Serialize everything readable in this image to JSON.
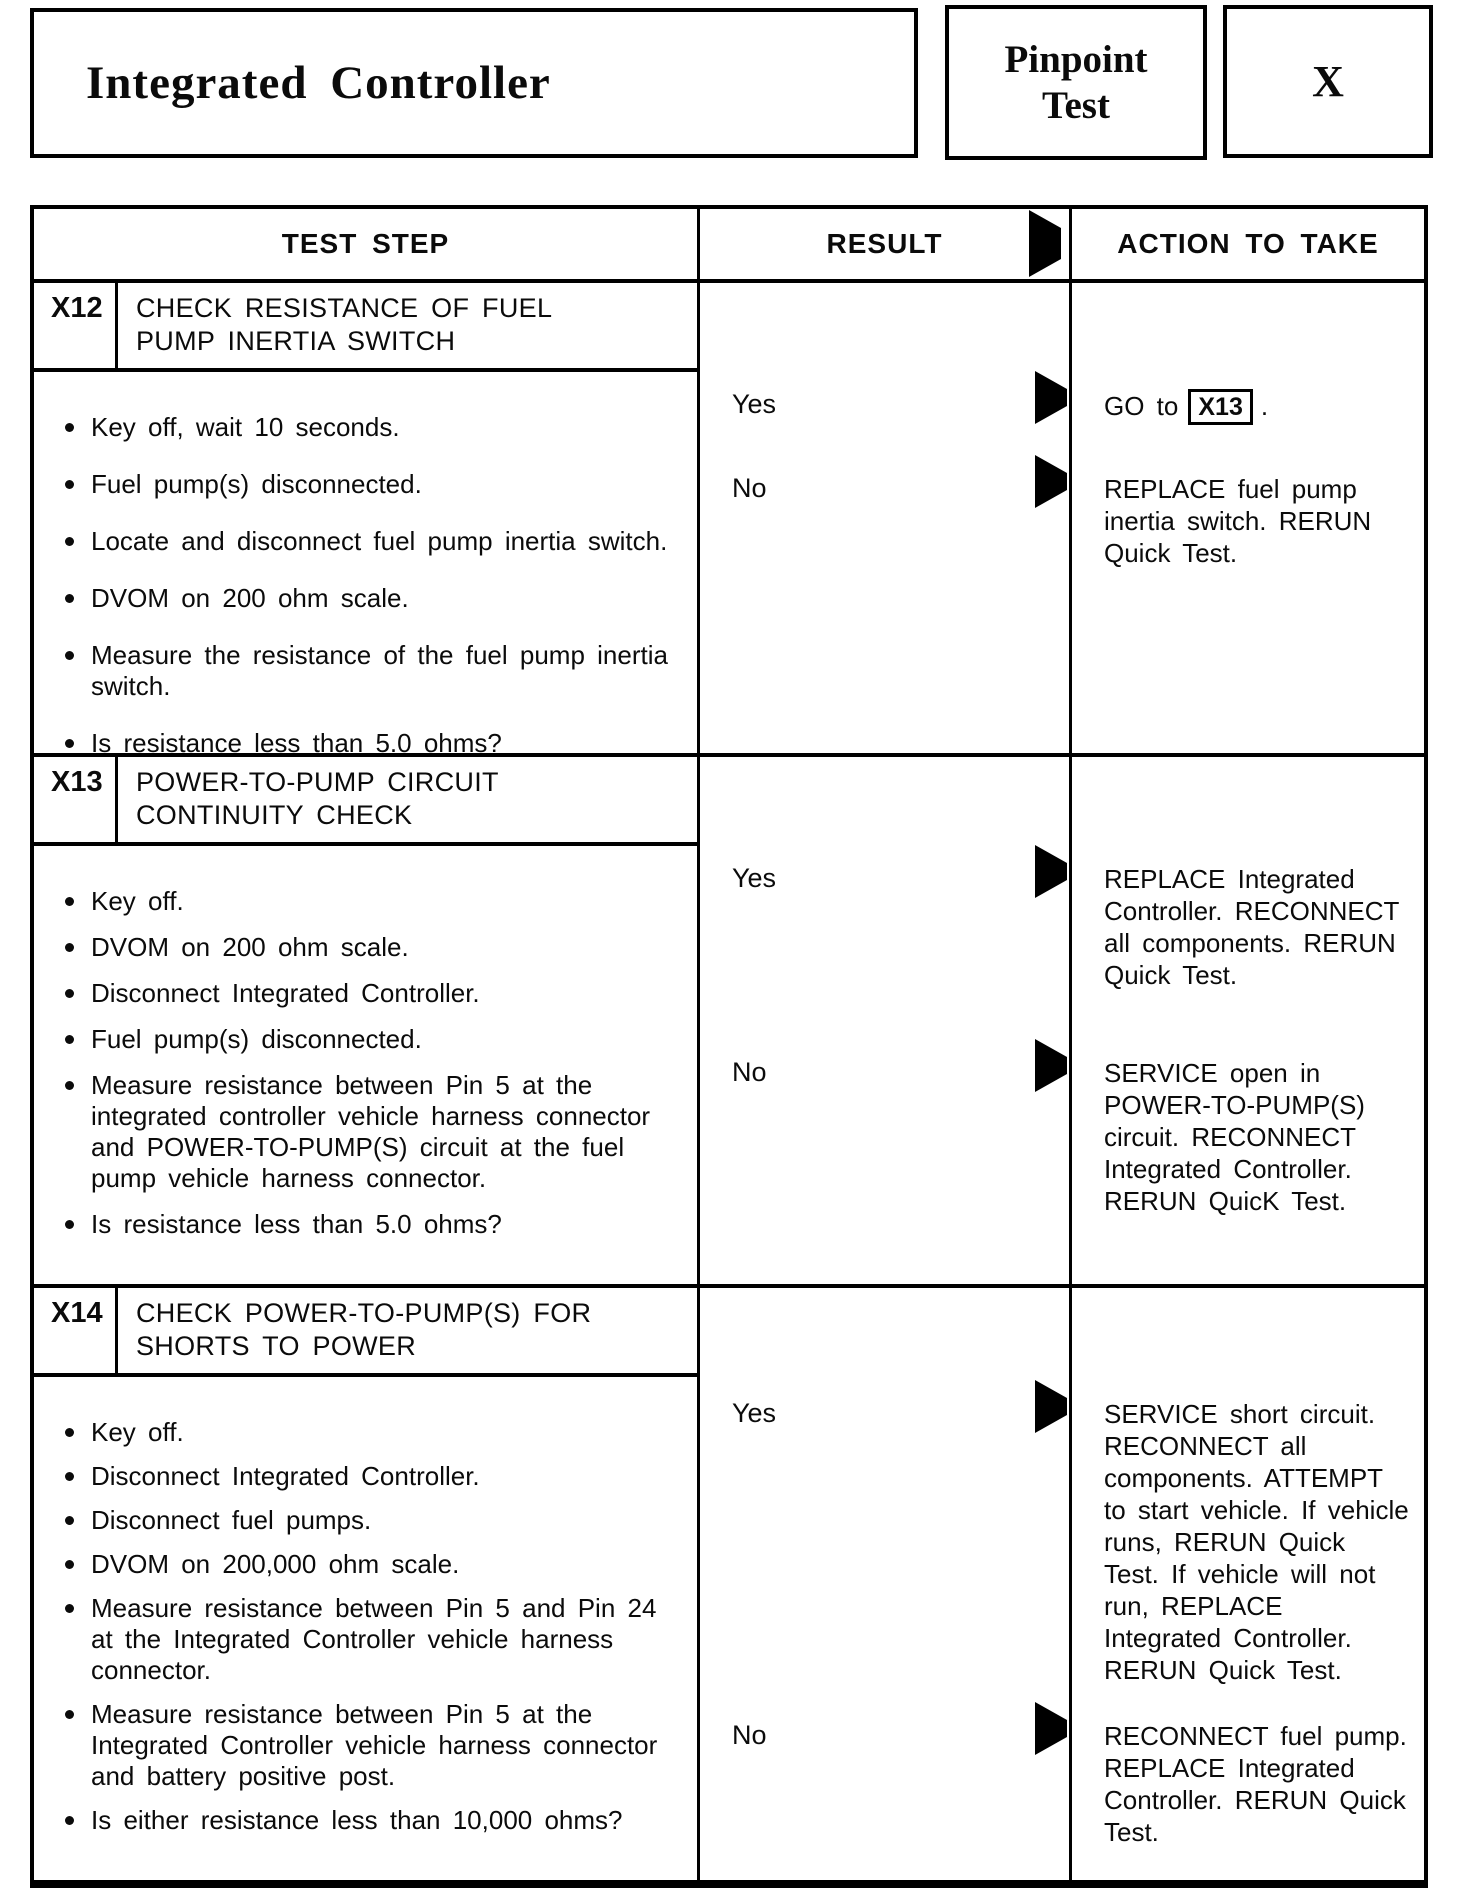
{
  "header": {
    "title": "Integrated Controller",
    "badge": {
      "line1": "Pinpoint",
      "line2": "Test"
    },
    "letter": "X"
  },
  "icons": {
    "result_arrow": "right-filled-triangle"
  },
  "table": {
    "headers": {
      "test_step": "TEST STEP",
      "result": "RESULT",
      "action": "ACTION TO TAKE"
    }
  },
  "sections": [
    {
      "id": "X12",
      "title": "CHECK RESISTANCE OF FUEL PUMP INERTIA SWITCH",
      "bullets": [
        "Key off, wait 10 seconds.",
        "Fuel pump(s) disconnected.",
        "Locate and disconnect fuel pump inertia switch.",
        "DVOM on 200 ohm scale.",
        "Measure the resistance of the fuel pump inertia switch.",
        "Is resistance less than 5.0 ohms?"
      ],
      "results": [
        {
          "label": "Yes",
          "action_prefix": "GO to",
          "action_link": "X13",
          "action_suffix": "."
        },
        {
          "label": "No",
          "action": "REPLACE fuel pump inertia switch. RERUN Quick Test."
        }
      ]
    },
    {
      "id": "X13",
      "title": "POWER-TO-PUMP CIRCUIT CONTINUITY CHECK",
      "bullets": [
        "Key off.",
        "DVOM on 200 ohm scale.",
        "Disconnect Integrated Controller.",
        "Fuel pump(s) disconnected.",
        "Measure resistance between Pin 5 at the integrated controller vehicle harness connector and POWER-TO-PUMP(S) circuit at the fuel pump vehicle harness connector.",
        "Is resistance less than 5.0 ohms?"
      ],
      "results": [
        {
          "label": "Yes",
          "action": "REPLACE Integrated Controller. RECONNECT all components. RERUN Quick Test."
        },
        {
          "label": "No",
          "action": "SERVICE open in POWER-TO-PUMP(S) circuit. RECONNECT Integrated Controller. RERUN QuicK Test."
        }
      ]
    },
    {
      "id": "X14",
      "title": "CHECK POWER-TO-PUMP(S) FOR SHORTS TO POWER",
      "bullets": [
        "Key off.",
        "Disconnect Integrated Controller.",
        "Disconnect fuel pumps.",
        "DVOM on 200,000 ohm scale.",
        "Measure resistance between Pin 5 and Pin 24 at the Integrated Controller vehicle harness connector.",
        "Measure resistance between Pin 5 at the Integrated Controller vehicle harness connector and battery positive post.",
        "Is either resistance less than 10,000 ohms?"
      ],
      "results": [
        {
          "label": "Yes",
          "action": "SERVICE short circuit. RECONNECT all components. ATTEMPT to start vehicle. If vehicle runs, RERUN Quick Test. If vehicle will not run, REPLACE Integrated Controller. RERUN Quick Test."
        },
        {
          "label": "No",
          "action": "RECONNECT fuel pump. REPLACE Integrated Controller. RERUN Quick Test."
        }
      ]
    }
  ]
}
